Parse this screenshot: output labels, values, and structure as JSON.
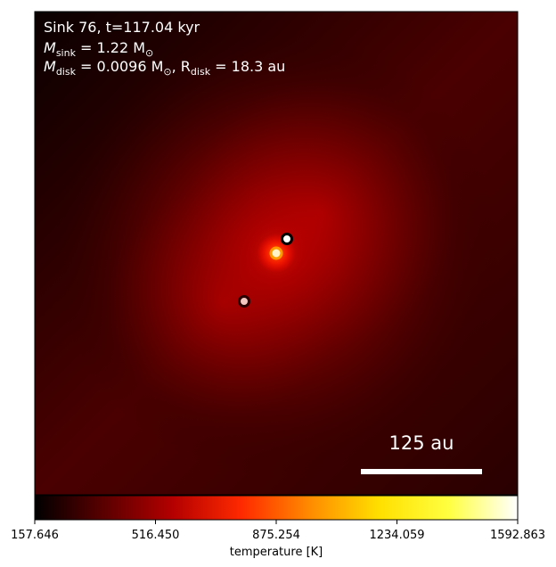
{
  "panel": {
    "line1": "Sink 76, t=117.04 kyr",
    "line2_symbol": "M",
    "line2_sub": "sink",
    "line2_rest": " = 1.22 M",
    "line2_sun": "⊙",
    "line3_symbol": "M",
    "line3_sub": "disk",
    "line3_mid": " = 0.0096 M",
    "line3_sun": "⊙",
    "line3_r": ", R",
    "line3_rsub": "disk",
    "line3_end": " = 18.3 au"
  },
  "scalebar": {
    "label": "125 au"
  },
  "colorbar": {
    "label": "temperature [K]",
    "ticks": [
      "157.646",
      "516.450",
      "875.254",
      "1234.059",
      "1592.863"
    ],
    "colormap": [
      "#000000",
      "#5a0000",
      "#b40000",
      "#ff2a00",
      "#ff8c00",
      "#ffe000",
      "#ffff40",
      "#ffffff"
    ]
  },
  "sinks": [
    {
      "name": "sink-primary",
      "fill": "#fff4c8",
      "ring": "#ff9a00"
    },
    {
      "name": "sink-north",
      "fill": "#ffffff",
      "ring": "#000000"
    },
    {
      "name": "sink-south",
      "fill": "#f2c8c0",
      "ring": "#2a0000"
    }
  ]
}
